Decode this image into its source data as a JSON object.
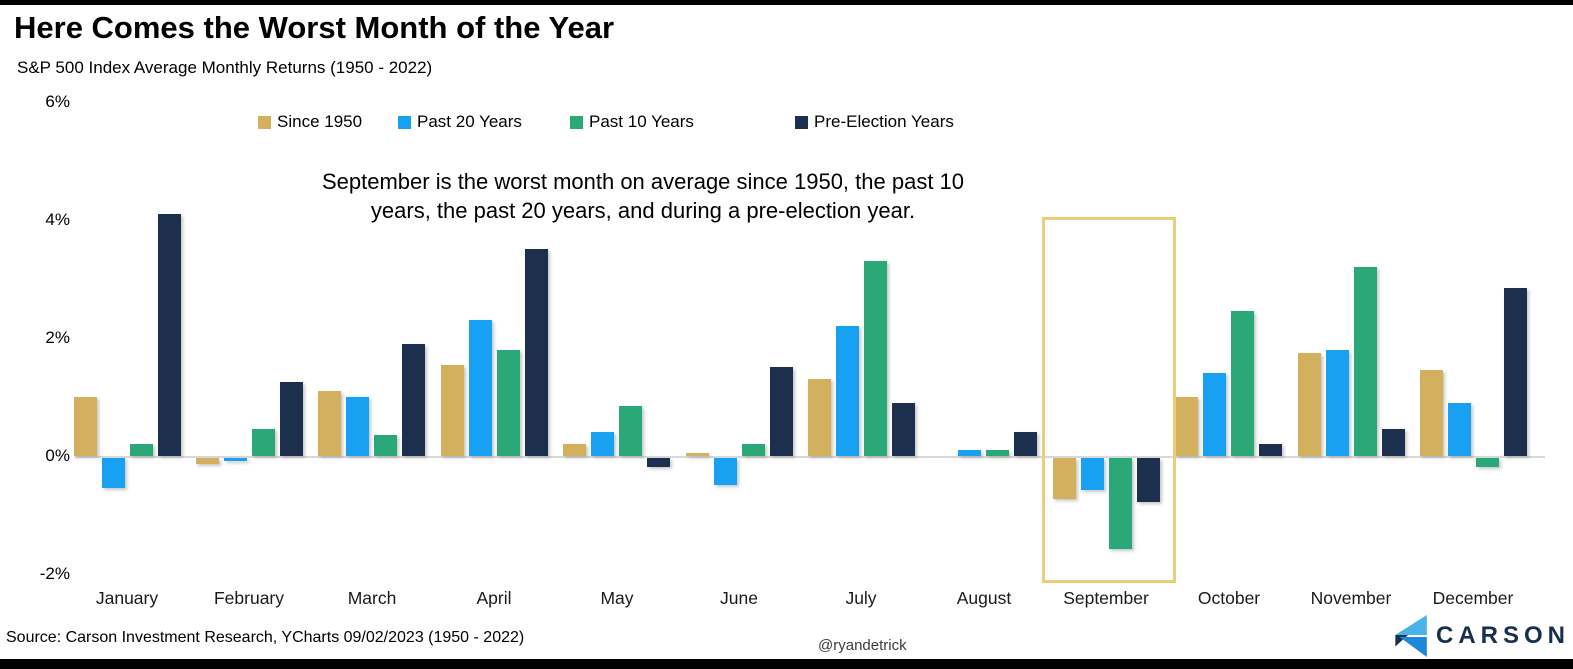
{
  "header": {
    "title": "Here Comes the Worst Month of the Year",
    "subtitle": "S&P 500 Index Average Monthly Returns (1950 - 2022)"
  },
  "annotation": {
    "line1": "September is the worst month on average since 1950, the past 10",
    "line2": "years, the past 20 years, and during a pre-election year."
  },
  "footer": {
    "source": "Source: Carson Investment Research, YCharts 09/02/2023 (1950 - 2022)",
    "handle": "@ryandetrick",
    "brand": "CARSON"
  },
  "colors": {
    "since_1950": "#d2b05e",
    "past_20_years": "#18a0f2",
    "past_10_years": "#2ba877",
    "pre_election_years": "#1c2f4c",
    "highlight_box": "#e9ce7d",
    "axis_line": "#d8d8d8",
    "logo_light_blue": "#4ab4e8",
    "logo_blue": "#1e88d8",
    "logo_navy": "#16304d"
  },
  "chart_data": {
    "type": "bar",
    "title": "Here Comes the Worst Month of the Year",
    "subtitle": "S&P 500 Index Average Monthly Returns (1950 - 2022)",
    "categories": [
      "January",
      "February",
      "March",
      "April",
      "May",
      "June",
      "July",
      "August",
      "September",
      "October",
      "November",
      "December"
    ],
    "series": [
      {
        "name": "Since 1950",
        "color": "#d2b05e",
        "values": [
          1.0,
          -0.1,
          1.1,
          1.55,
          0.2,
          0.05,
          1.3,
          0.0,
          -0.7,
          1.0,
          1.75,
          1.45
        ]
      },
      {
        "name": "Past 20 Years",
        "color": "#18a0f2",
        "values": [
          -0.5,
          -0.05,
          1.0,
          2.3,
          0.4,
          -0.45,
          2.2,
          0.1,
          -0.55,
          1.4,
          1.8,
          0.9
        ]
      },
      {
        "name": "Past 10 Years",
        "color": "#2ba877",
        "values": [
          0.2,
          0.45,
          0.35,
          1.8,
          0.85,
          0.2,
          3.3,
          0.1,
          -1.55,
          2.45,
          3.2,
          -0.15
        ]
      },
      {
        "name": "Pre-Election Years",
        "color": "#1c2f4c",
        "values": [
          4.1,
          1.25,
          1.9,
          3.5,
          -0.15,
          1.5,
          0.9,
          0.4,
          -0.75,
          0.2,
          0.45,
          2.85
        ]
      }
    ],
    "yticks": [
      {
        "value": 6,
        "label": "6%"
      },
      {
        "value": 4,
        "label": "4%"
      },
      {
        "value": 2,
        "label": "2%"
      },
      {
        "value": 0,
        "label": "0%"
      },
      {
        "value": -2,
        "label": "-2%"
      }
    ],
    "ylim": [
      -2,
      6
    ],
    "unit": "%",
    "grid": false,
    "legend_position": "top",
    "highlighted_month": "September"
  }
}
